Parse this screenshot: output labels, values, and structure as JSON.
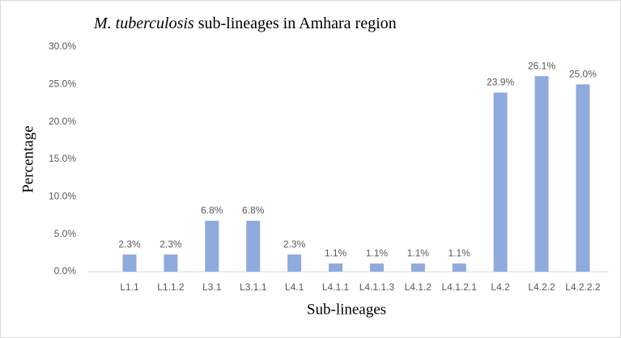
{
  "chart_data": {
    "type": "bar",
    "title": [
      "M. tuberculosis",
      "sub-lineages in Amhara region"
    ],
    "x_label": "Sub-lineages",
    "y_label": "Percentage",
    "categories": [
      "L1.1",
      "L1.1.2",
      "L3.1",
      "L3.1.1",
      "L4.1",
      "L4.1.1",
      "L4.1.1.3",
      "L4.1.2",
      "L4.1.2.1",
      "L4.2",
      "L4.2.2",
      "L4.2.2.2"
    ],
    "values": [
      2.3,
      2.3,
      6.8,
      6.8,
      2.3,
      1.1,
      1.1,
      1.1,
      1.1,
      23.9,
      26.1,
      25.0
    ],
    "value_labels": [
      "2.3%",
      "2.3%",
      "6.8%",
      "6.8%",
      "2.3%",
      "1.1%",
      "1.1%",
      "1.1%",
      "1.1%",
      "23.9%",
      "26.1%",
      "25.0%"
    ],
    "color": "#8faadc",
    "ylim": [
      0,
      30
    ],
    "yticks": [
      {
        "value": 0,
        "label": "0.0%"
      },
      {
        "value": 5,
        "label": "5.0%"
      },
      {
        "value": 10,
        "label": "10.0%"
      },
      {
        "value": 15,
        "label": "15.0%"
      },
      {
        "value": 20,
        "label": "20.0%"
      },
      {
        "value": 25,
        "label": "25.0%"
      },
      {
        "value": 30,
        "label": "30.0%"
      }
    ],
    "grid": false
  }
}
